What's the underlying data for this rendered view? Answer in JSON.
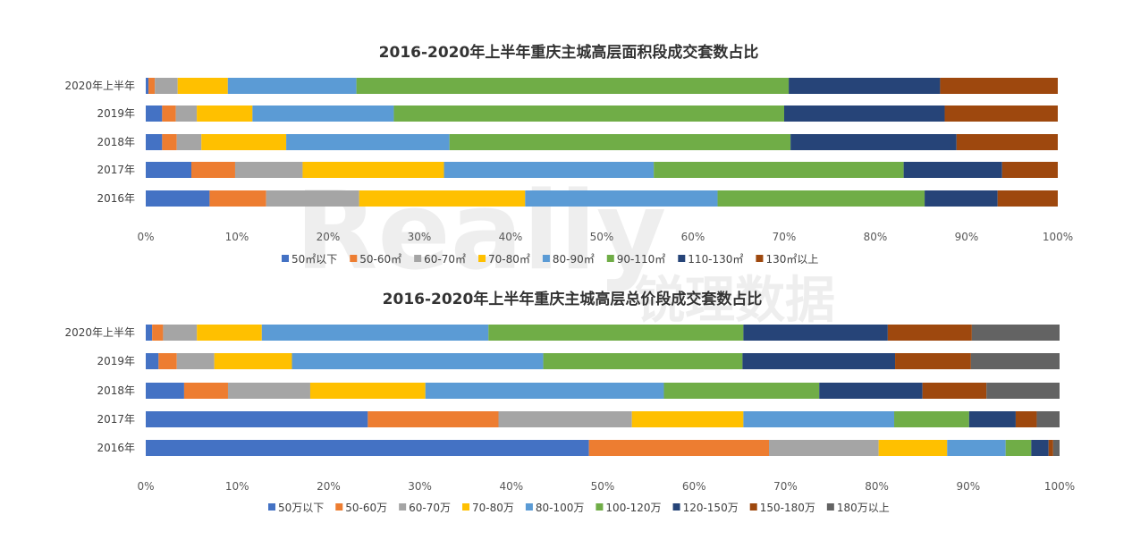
{
  "colors": [
    "#4472C4",
    "#ED7D31",
    "#A5A5A5",
    "#FFC000",
    "#5B9BD5",
    "#70AD47",
    "#264478",
    "#9E480E",
    "#636363"
  ],
  "watermark": {
    "latin": "Really",
    "cn": "锐理数据"
  },
  "chart_data": [
    {
      "type": "bar",
      "orientation": "horizontal",
      "stacked": "percent",
      "title": "2016-2020年上半年重庆主城高层面积段成交套数占比",
      "categories": [
        "2020年上半年",
        "2019年",
        "2018年",
        "2017年",
        "2016年"
      ],
      "x_ticks": [
        "0%",
        "10%",
        "20%",
        "30%",
        "40%",
        "50%",
        "60%",
        "70%",
        "80%",
        "90%",
        "100%"
      ],
      "xlim": [
        0,
        100
      ],
      "legend_position": "bottom",
      "series": [
        {
          "name": "50㎡以下",
          "values": [
            0.3,
            1.8,
            1.8,
            5.0,
            7.0
          ]
        },
        {
          "name": "50-60㎡",
          "values": [
            0.7,
            1.5,
            1.6,
            4.8,
            6.2
          ]
        },
        {
          "name": "60-70㎡",
          "values": [
            2.5,
            2.3,
            2.7,
            7.4,
            10.2
          ]
        },
        {
          "name": "70-80㎡",
          "values": [
            5.5,
            6.1,
            9.3,
            15.5,
            18.2
          ]
        },
        {
          "name": "80-90㎡",
          "values": [
            14.1,
            15.5,
            17.9,
            23.0,
            21.1
          ]
        },
        {
          "name": "90-110㎡",
          "values": [
            47.4,
            42.8,
            37.4,
            27.4,
            22.7
          ]
        },
        {
          "name": "110-130㎡",
          "values": [
            16.6,
            17.6,
            18.2,
            10.8,
            8.0
          ]
        },
        {
          "name": "130㎡以上",
          "values": [
            12.9,
            12.4,
            11.1,
            6.1,
            6.6
          ]
        }
      ]
    },
    {
      "type": "bar",
      "orientation": "horizontal",
      "stacked": "percent",
      "title": "2016-2020年上半年重庆主城高层总价段成交套数占比",
      "categories": [
        "2020年上半年",
        "2019年",
        "2018年",
        "2017年",
        "2016年"
      ],
      "x_ticks": [
        "0%",
        "10%",
        "20%",
        "30%",
        "40%",
        "50%",
        "60%",
        "70%",
        "80%",
        "90%",
        "100%"
      ],
      "xlim": [
        0,
        100
      ],
      "legend_position": "bottom",
      "series": [
        {
          "name": "50万以下",
          "values": [
            0.7,
            1.4,
            4.2,
            24.3,
            48.5
          ]
        },
        {
          "name": "50-60万",
          "values": [
            1.2,
            2.0,
            4.8,
            14.3,
            19.7
          ]
        },
        {
          "name": "60-70万",
          "values": [
            3.7,
            4.1,
            9.0,
            14.6,
            12.0
          ]
        },
        {
          "name": "70-80万",
          "values": [
            7.1,
            8.5,
            12.6,
            12.2,
            7.5
          ]
        },
        {
          "name": "80-100万",
          "values": [
            24.8,
            27.5,
            26.1,
            16.5,
            6.4
          ]
        },
        {
          "name": "100-120万",
          "values": [
            27.9,
            21.8,
            17.0,
            8.2,
            2.8
          ]
        },
        {
          "name": "120-150万",
          "values": [
            15.8,
            16.7,
            11.3,
            5.1,
            1.9
          ]
        },
        {
          "name": "150-180万",
          "values": [
            9.2,
            8.3,
            7.0,
            2.3,
            0.5
          ]
        },
        {
          "name": "180万以上",
          "values": [
            9.6,
            9.7,
            8.0,
            2.5,
            0.7
          ]
        }
      ]
    }
  ]
}
